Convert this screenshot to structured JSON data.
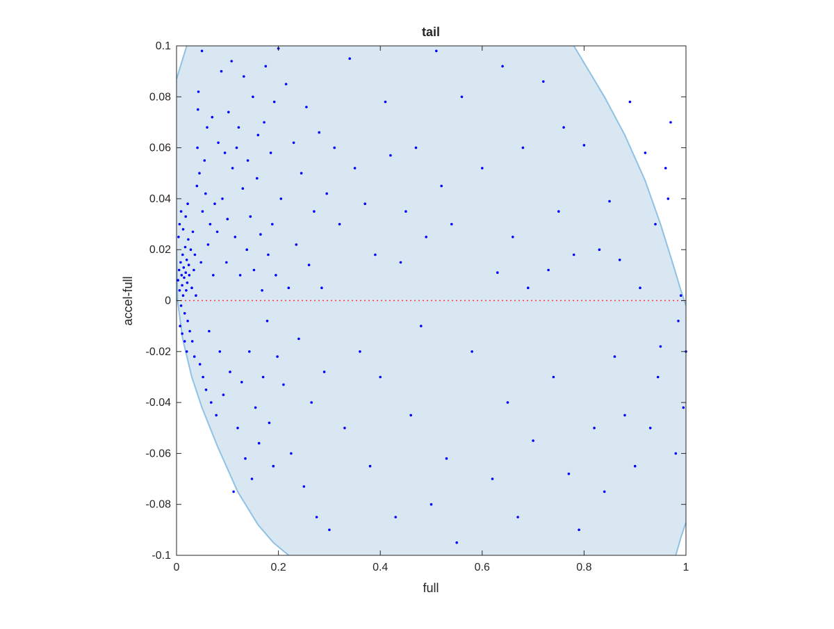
{
  "chart_data": {
    "type": "scatter",
    "title": "tail",
    "xlabel": "full",
    "ylabel": "accel-full",
    "xlim": [
      0,
      1
    ],
    "ylim": [
      -0.1,
      0.1
    ],
    "xticks": [
      0,
      0.2,
      0.4,
      0.6,
      0.8,
      1
    ],
    "xtick_labels": [
      "0",
      "0.2",
      "0.4",
      "0.6",
      "0.8",
      "1"
    ],
    "yticks": [
      -0.1,
      -0.08,
      -0.06,
      -0.04,
      -0.02,
      0,
      0.02,
      0.04,
      0.06,
      0.08,
      0.1
    ],
    "ytick_labels": [
      "-0.1",
      "-0.08",
      "-0.06",
      "-0.04",
      "-0.02",
      "0",
      "0.02",
      "0.04",
      "0.06",
      "0.08",
      "0.1"
    ],
    "grid": false,
    "colors": {
      "points": "#0000ff",
      "region_fill": "#d9e7f3",
      "region_edge": "#8fc1e3",
      "zero_line": "#ff3b30",
      "axes": "#262626"
    },
    "reference_line": {
      "y": 0,
      "style": "dotted"
    },
    "region": {
      "description_type": "shaded ellipse-like band",
      "left_boundary": [
        [
          0.0,
          0.087
        ],
        [
          0.02,
          0.1
        ],
        [
          0.0,
          0.02
        ],
        [
          0.02,
          -0.02
        ],
        [
          0.08,
          -0.057
        ],
        [
          0.16,
          -0.09
        ],
        [
          0.22,
          -0.1
        ]
      ],
      "right_boundary": [
        [
          0.78,
          0.1
        ],
        [
          0.88,
          0.065
        ],
        [
          0.94,
          0.035
        ],
        [
          0.98,
          0.01
        ],
        [
          1.0,
          -0.005
        ],
        [
          1.0,
          -0.087
        ],
        [
          0.98,
          -0.1
        ]
      ]
    },
    "series": [
      {
        "points": [
          [
            0.003,
            0.008
          ],
          [
            0.005,
            0.012
          ],
          [
            0.006,
            0.004
          ],
          [
            0.008,
            0.015
          ],
          [
            0.009,
            -0.002
          ],
          [
            0.01,
            0.01
          ],
          [
            0.011,
            0.006
          ],
          [
            0.012,
            0.018
          ],
          [
            0.013,
            0.002
          ],
          [
            0.014,
            0.013
          ],
          [
            0.015,
            0.009
          ],
          [
            0.016,
            -0.005
          ],
          [
            0.017,
            0.021
          ],
          [
            0.018,
            0.011
          ],
          [
            0.019,
            0.004
          ],
          [
            0.02,
            0.016
          ],
          [
            0.021,
            0.007
          ],
          [
            0.022,
            -0.008
          ],
          [
            0.023,
            0.024
          ],
          [
            0.024,
            0.014
          ],
          [
            0.004,
            0.025
          ],
          [
            0.006,
            0.03
          ],
          [
            0.007,
            -0.01
          ],
          [
            0.009,
            0.035
          ],
          [
            0.011,
            -0.013
          ],
          [
            0.013,
            0.028
          ],
          [
            0.016,
            -0.016
          ],
          [
            0.018,
            0.033
          ],
          [
            0.02,
            -0.02
          ],
          [
            0.022,
            0.038
          ],
          [
            0.025,
            0.01
          ],
          [
            0.026,
            -0.012
          ],
          [
            0.028,
            0.02
          ],
          [
            0.03,
            0.005
          ],
          [
            0.031,
            -0.016
          ],
          [
            0.032,
            0.027
          ],
          [
            0.034,
            0.012
          ],
          [
            0.035,
            -0.022
          ],
          [
            0.036,
            0.018
          ],
          [
            0.038,
            0.002
          ],
          [
            0.04,
            0.045
          ],
          [
            0.041,
            0.06
          ],
          [
            0.042,
            0.075
          ],
          [
            0.043,
            0.082
          ],
          [
            0.045,
            0.05
          ],
          [
            0.046,
            -0.025
          ],
          [
            0.048,
            0.015
          ],
          [
            0.05,
            0.098
          ],
          [
            0.051,
            0.035
          ],
          [
            0.052,
            -0.03
          ],
          [
            0.055,
            0.055
          ],
          [
            0.057,
            0.042
          ],
          [
            0.058,
            -0.035
          ],
          [
            0.06,
            0.068
          ],
          [
            0.062,
            0.022
          ],
          [
            0.064,
            -0.012
          ],
          [
            0.066,
            0.03
          ],
          [
            0.068,
            -0.04
          ],
          [
            0.07,
            0.072
          ],
          [
            0.072,
            0.01
          ],
          [
            0.075,
            0.038
          ],
          [
            0.078,
            -0.045
          ],
          [
            0.08,
            0.027
          ],
          [
            0.082,
            0.062
          ],
          [
            0.085,
            -0.02
          ],
          [
            0.088,
            0.09
          ],
          [
            0.09,
            0.04
          ],
          [
            0.092,
            -0.037
          ],
          [
            0.095,
            0.058
          ],
          [
            0.098,
            0.015
          ],
          [
            0.1,
            0.032
          ],
          [
            0.102,
            0.074
          ],
          [
            0.105,
            -0.028
          ],
          [
            0.108,
            0.094
          ],
          [
            0.11,
            0.052
          ],
          [
            0.112,
            -0.075
          ],
          [
            0.115,
            0.025
          ],
          [
            0.118,
            0.06
          ],
          [
            0.12,
            -0.05
          ],
          [
            0.122,
            0.068
          ],
          [
            0.125,
            0.01
          ],
          [
            0.128,
            -0.032
          ],
          [
            0.13,
            0.044
          ],
          [
            0.132,
            0.088
          ],
          [
            0.135,
            -0.062
          ],
          [
            0.138,
            0.02
          ],
          [
            0.14,
            0.055
          ],
          [
            0.143,
            -0.02
          ],
          [
            0.145,
            0.033
          ],
          [
            0.148,
            -0.07
          ],
          [
            0.15,
            0.08
          ],
          [
            0.152,
            0.012
          ],
          [
            0.155,
            -0.042
          ],
          [
            0.158,
            0.048
          ],
          [
            0.16,
            0.065
          ],
          [
            0.162,
            -0.056
          ],
          [
            0.165,
            0.026
          ],
          [
            0.168,
            0.004
          ],
          [
            0.17,
            -0.03
          ],
          [
            0.172,
            0.07
          ],
          [
            0.175,
            0.092
          ],
          [
            0.178,
            -0.008
          ],
          [
            0.18,
            0.018
          ],
          [
            0.182,
            -0.048
          ],
          [
            0.185,
            0.058
          ],
          [
            0.188,
            0.03
          ],
          [
            0.19,
            -0.065
          ],
          [
            0.192,
            0.078
          ],
          [
            0.195,
            0.01
          ],
          [
            0.198,
            -0.022
          ],
          [
            0.2,
            0.099
          ],
          [
            0.205,
            0.04
          ],
          [
            0.21,
            -0.033
          ],
          [
            0.215,
            0.085
          ],
          [
            0.22,
            0.005
          ],
          [
            0.225,
            -0.06
          ],
          [
            0.23,
            0.062
          ],
          [
            0.235,
            0.022
          ],
          [
            0.24,
            -0.015
          ],
          [
            0.245,
            0.05
          ],
          [
            0.25,
            -0.073
          ],
          [
            0.255,
            0.076
          ],
          [
            0.26,
            0.014
          ],
          [
            0.265,
            -0.04
          ],
          [
            0.27,
            0.035
          ],
          [
            0.275,
            -0.085
          ],
          [
            0.28,
            0.066
          ],
          [
            0.285,
            0.005
          ],
          [
            0.29,
            -0.028
          ],
          [
            0.295,
            0.042
          ],
          [
            0.3,
            -0.09
          ],
          [
            0.31,
            0.06
          ],
          [
            0.32,
            0.03
          ],
          [
            0.33,
            -0.05
          ],
          [
            0.34,
            0.095
          ],
          [
            0.35,
            0.052
          ],
          [
            0.36,
            -0.02
          ],
          [
            0.37,
            0.038
          ],
          [
            0.38,
            -0.065
          ],
          [
            0.39,
            0.018
          ],
          [
            0.4,
            -0.03
          ],
          [
            0.41,
            0.078
          ],
          [
            0.42,
            0.057
          ],
          [
            0.43,
            -0.085
          ],
          [
            0.44,
            0.015
          ],
          [
            0.45,
            0.035
          ],
          [
            0.46,
            -0.045
          ],
          [
            0.47,
            0.06
          ],
          [
            0.48,
            -0.01
          ],
          [
            0.49,
            0.025
          ],
          [
            0.5,
            -0.08
          ],
          [
            0.51,
            0.098
          ],
          [
            0.52,
            0.045
          ],
          [
            0.53,
            -0.062
          ],
          [
            0.54,
            0.03
          ],
          [
            0.55,
            -0.095
          ],
          [
            0.56,
            0.08
          ],
          [
            0.58,
            -0.02
          ],
          [
            0.6,
            0.052
          ],
          [
            0.62,
            -0.07
          ],
          [
            0.63,
            0.011
          ],
          [
            0.64,
            0.092
          ],
          [
            0.65,
            -0.04
          ],
          [
            0.66,
            0.025
          ],
          [
            0.67,
            -0.085
          ],
          [
            0.68,
            0.06
          ],
          [
            0.69,
            0.005
          ],
          [
            0.7,
            -0.055
          ],
          [
            0.72,
            0.086
          ],
          [
            0.73,
            0.012
          ],
          [
            0.74,
            -0.03
          ],
          [
            0.75,
            0.035
          ],
          [
            0.76,
            0.068
          ],
          [
            0.77,
            -0.068
          ],
          [
            0.78,
            0.018
          ],
          [
            0.79,
            -0.09
          ],
          [
            0.8,
            0.061
          ],
          [
            0.82,
            -0.05
          ],
          [
            0.83,
            0.02
          ],
          [
            0.84,
            -0.075
          ],
          [
            0.85,
            0.039
          ],
          [
            0.86,
            -0.022
          ],
          [
            0.87,
            0.016
          ],
          [
            0.88,
            -0.045
          ],
          [
            0.89,
            0.078
          ],
          [
            0.9,
            -0.065
          ],
          [
            0.91,
            0.005
          ],
          [
            0.92,
            0.058
          ],
          [
            0.93,
            -0.05
          ],
          [
            0.94,
            0.03
          ],
          [
            0.95,
            -0.018
          ],
          [
            0.96,
            0.052
          ],
          [
            0.97,
            0.07
          ],
          [
            0.98,
            -0.06
          ],
          [
            0.99,
            0.002
          ],
          [
            1.0,
            -0.02
          ],
          [
            0.995,
            -0.042
          ],
          [
            0.985,
            -0.008
          ],
          [
            0.965,
            0.04
          ],
          [
            0.945,
            -0.03
          ]
        ]
      }
    ]
  }
}
